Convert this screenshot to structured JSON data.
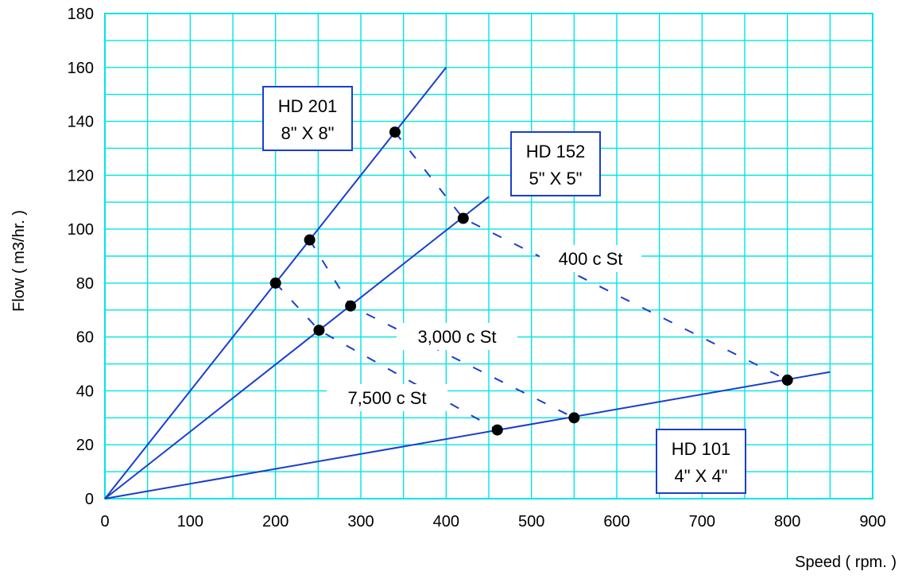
{
  "chart_data": {
    "type": "line",
    "title": "",
    "xlabel": "Speed ( rpm. )",
    "ylabel": "Flow ( m3/hr. )",
    "xlim": [
      0,
      900
    ],
    "ylim": [
      0,
      180
    ],
    "xticks": [
      0,
      100,
      200,
      300,
      400,
      500,
      600,
      700,
      800,
      900
    ],
    "yticks": [
      0,
      20,
      40,
      60,
      80,
      100,
      120,
      140,
      160,
      180
    ],
    "grid": true,
    "colors": {
      "grid": "#00e5e5",
      "line": "#1a3fcc",
      "point": "#000000"
    },
    "series": [
      {
        "name": "HD 201",
        "size": "8\" X 8\"",
        "x": [
          0,
          400
        ],
        "y": [
          0,
          160
        ]
      },
      {
        "name": "HD 152",
        "size": "5\" X 5\"",
        "x": [
          0,
          450
        ],
        "y": [
          0,
          112
        ]
      },
      {
        "name": "HD 101",
        "size": "4\" X 4\"",
        "x": [
          0,
          850
        ],
        "y": [
          0,
          47
        ]
      }
    ],
    "viscosity_lines": [
      {
        "name": "400 c St",
        "x": [
          340,
          420,
          800
        ],
        "y": [
          136,
          104,
          44
        ]
      },
      {
        "name": "3,000 c St",
        "x": [
          240,
          288,
          550
        ],
        "y": [
          96,
          71.5,
          30
        ]
      },
      {
        "name": "7,500 c St",
        "x": [
          200,
          251,
          460
        ],
        "y": [
          80,
          62.5,
          25.5
        ]
      }
    ],
    "points": [
      {
        "x": 340,
        "y": 136
      },
      {
        "x": 240,
        "y": 96
      },
      {
        "x": 200,
        "y": 80
      },
      {
        "x": 420,
        "y": 104
      },
      {
        "x": 288,
        "y": 71.5
      },
      {
        "x": 251,
        "y": 62.5
      },
      {
        "x": 800,
        "y": 44
      },
      {
        "x": 550,
        "y": 30
      },
      {
        "x": 460,
        "y": 25.5
      }
    ]
  }
}
